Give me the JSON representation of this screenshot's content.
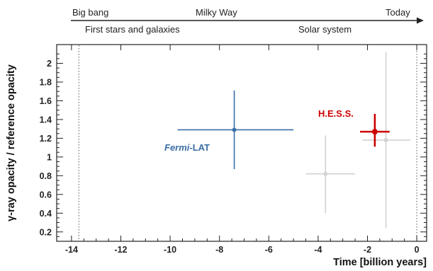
{
  "timeline": {
    "top_labels": [
      {
        "text": "Big bang",
        "t": -13.8
      },
      {
        "text": "Milky Way",
        "t": -8.8
      },
      {
        "text": "Today",
        "t": 0
      }
    ],
    "bottom_labels": [
      {
        "text": "First stars and galaxies",
        "t": -11.4
      },
      {
        "text": "Solar system",
        "t": -4.6
      }
    ]
  },
  "chart_data": {
    "type": "scatter",
    "xlabel": "Time [billion years]",
    "ylabel": "γ-ray opacity / reference opacity",
    "xlim": [
      -14.6,
      0.4
    ],
    "ylim": [
      0.1,
      2.2
    ],
    "x_ticks": [
      -14,
      -12,
      -10,
      -8,
      -6,
      -4,
      -2,
      0
    ],
    "y_ticks": [
      0.2,
      0.4,
      0.6,
      0.8,
      1,
      1.2,
      1.4,
      1.6,
      1.8,
      2
    ],
    "grid": false,
    "vertical_reference_lines": [
      -13.7,
      0
    ],
    "series": [
      {
        "name": "Fermi-LAT",
        "name_italic": "Fermi",
        "name_rest": "-LAT",
        "color": "#3b6ea5",
        "points": [
          {
            "x": -7.4,
            "y": 1.29,
            "xerr_low": 2.3,
            "xerr_high": 2.4,
            "yerr_low": 0.42,
            "yerr_high": 0.42
          }
        ]
      },
      {
        "name": "H.E.S.S.",
        "color": "#cc0000",
        "points": [
          {
            "x": -1.7,
            "y": 1.27,
            "xerr_low": 0.6,
            "xerr_high": 0.6,
            "yerr_low": 0.16,
            "yerr_high": 0.19
          }
        ]
      },
      {
        "name": "",
        "color": "#d2d2d2",
        "points": [
          {
            "x": -3.7,
            "y": 0.82,
            "xerr_low": 0.8,
            "xerr_high": 1.2,
            "yerr_low": 0.42,
            "yerr_high": 0.41
          },
          {
            "x": -1.25,
            "y": 1.18,
            "xerr_low": 0.95,
            "xerr_high": 1.0,
            "yerr_low": 0.94,
            "yerr_high": 0.94
          }
        ]
      }
    ]
  }
}
